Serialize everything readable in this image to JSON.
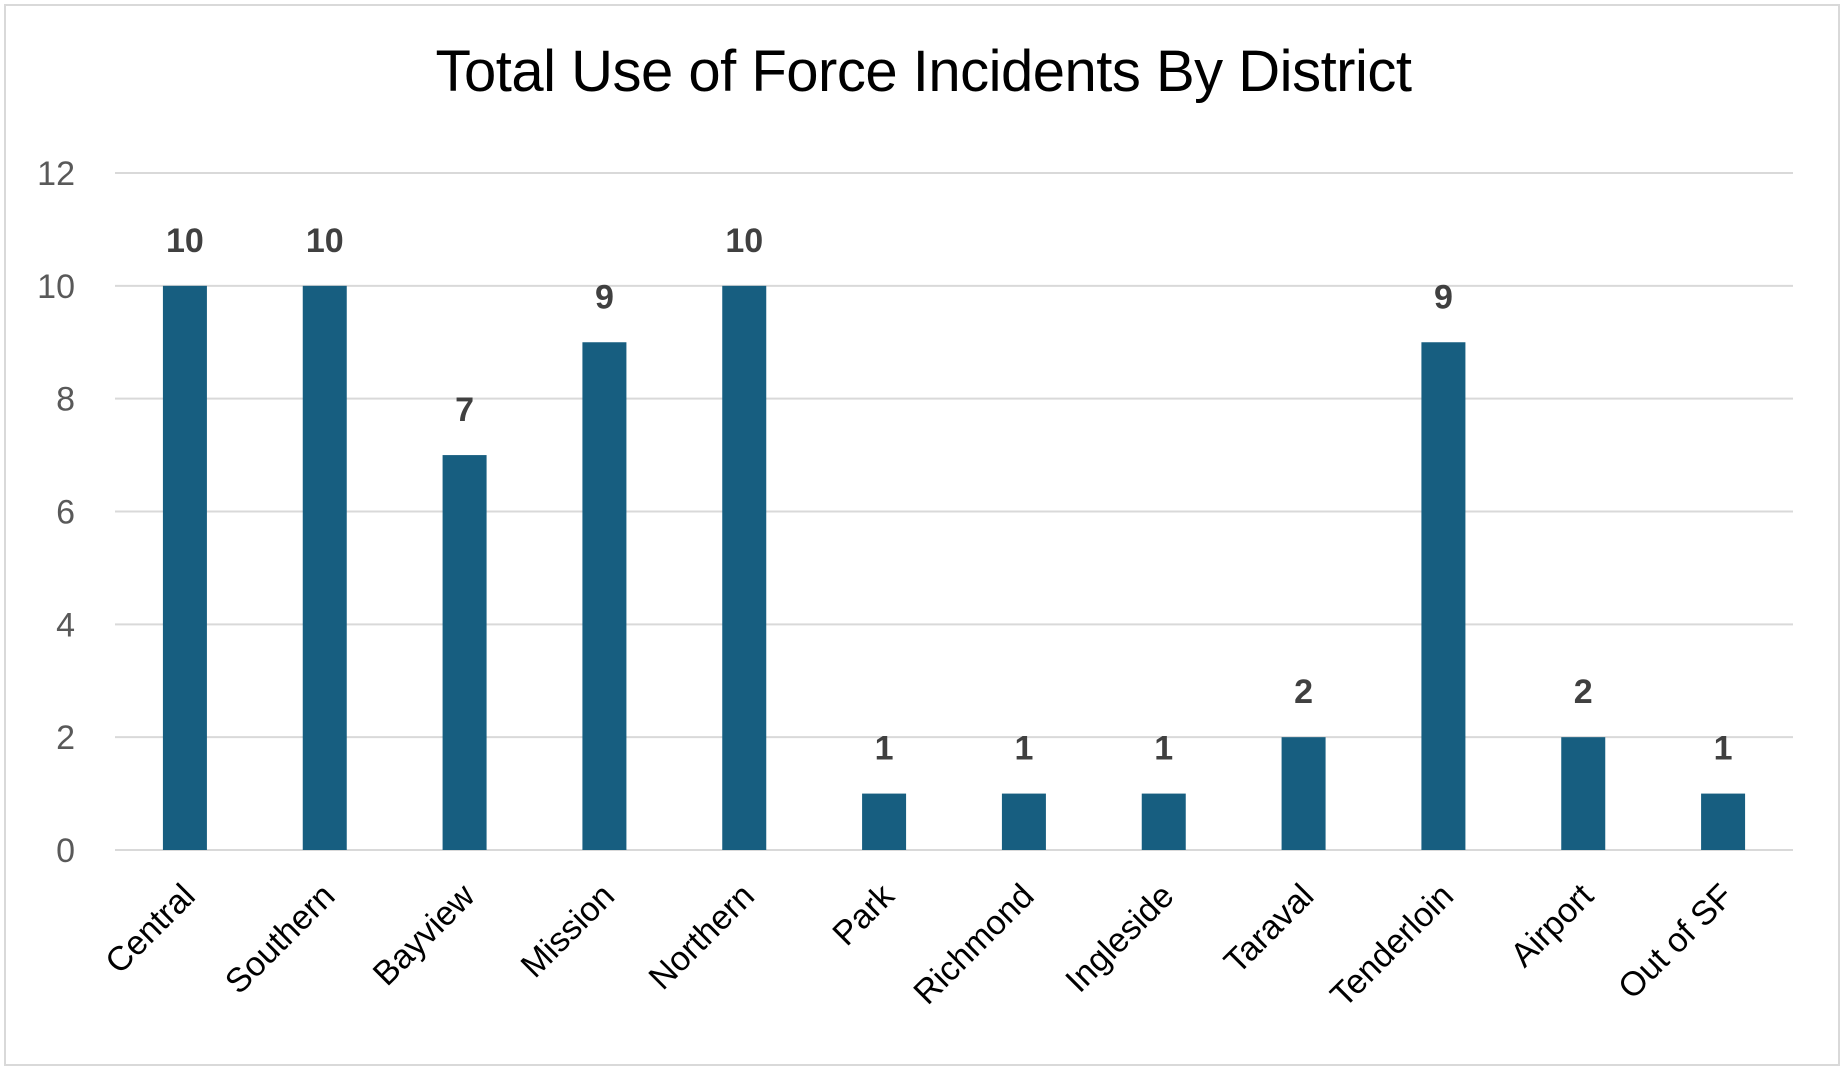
{
  "chart_data": {
    "type": "bar",
    "title": "Total Use of Force Incidents By District",
    "categories": [
      "Central",
      "Southern",
      "Bayview",
      "Mission",
      "Northern",
      "Park",
      "Richmond",
      "Ingleside",
      "Taraval",
      "Tenderloin",
      "Airport",
      "Out of SF"
    ],
    "values": [
      10,
      10,
      7,
      9,
      10,
      1,
      1,
      1,
      2,
      9,
      2,
      1
    ],
    "xlabel": "",
    "ylabel": "",
    "ylim": [
      0,
      12
    ],
    "yticks": [
      0,
      2,
      4,
      6,
      8,
      10,
      12
    ],
    "grid": true,
    "legend": "none",
    "data_labels": true,
    "colors": {
      "bar": "#175e80",
      "grid": "#d9d9d9",
      "tick_text": "#595959",
      "data_label_text": "#404040"
    }
  }
}
